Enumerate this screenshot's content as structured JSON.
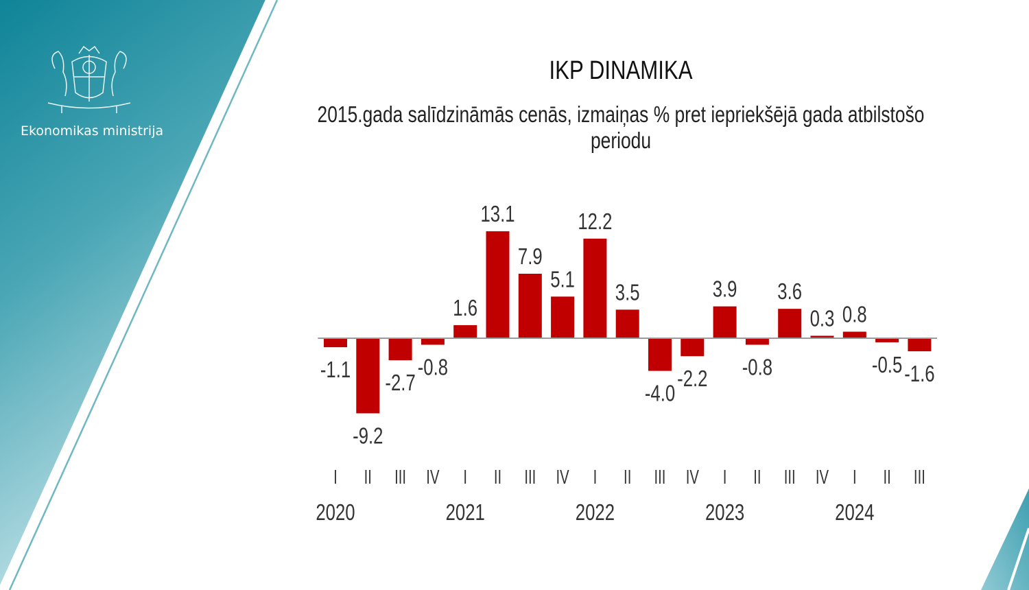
{
  "header": {
    "org_name": "Ekonomikas ministrija",
    "logo_icon": "latvia-coat-of-arms-icon"
  },
  "colors": {
    "bar": "#c00000",
    "teal": "#138a9c",
    "axis": "#9a9a9a"
  },
  "chart_data": {
    "type": "bar",
    "title": "IKP DINAMIKA",
    "subtitle": "2015.gada salīdzināmās cenās, izmaiņas % pret iepriekšējā gada atbilstošo periodu",
    "categories": [
      "I",
      "II",
      "III",
      "IV",
      "I",
      "II",
      "III",
      "IV",
      "I",
      "II",
      "III",
      "IV",
      "I",
      "II",
      "III",
      "IV",
      "I",
      "II",
      "III"
    ],
    "values": [
      -1.1,
      -9.2,
      -2.7,
      -0.8,
      1.6,
      13.1,
      7.9,
      5.1,
      12.2,
      3.5,
      -4.0,
      -2.2,
      3.9,
      -0.8,
      3.6,
      0.3,
      0.8,
      -0.5,
      -1.6
    ],
    "value_labels": [
      "-1.1",
      "-9.2",
      "-2.7",
      "-0.8",
      "1.6",
      "13.1",
      "7.9",
      "5.1",
      "12.2",
      "3.5",
      "-4.0",
      "-2.2",
      "3.9",
      "-0.8",
      "3.6",
      "0.3",
      "0.8",
      "-0.5",
      "-1.6"
    ],
    "years": [
      {
        "label": "2020",
        "start_index": 0
      },
      {
        "label": "2021",
        "start_index": 4
      },
      {
        "label": "2022",
        "start_index": 8
      },
      {
        "label": "2023",
        "start_index": 12
      },
      {
        "label": "2024",
        "start_index": 16
      }
    ],
    "xlabel": "",
    "ylabel": "",
    "ylim": [
      -9.2,
      13.1
    ],
    "grid": false,
    "legend": "none"
  }
}
